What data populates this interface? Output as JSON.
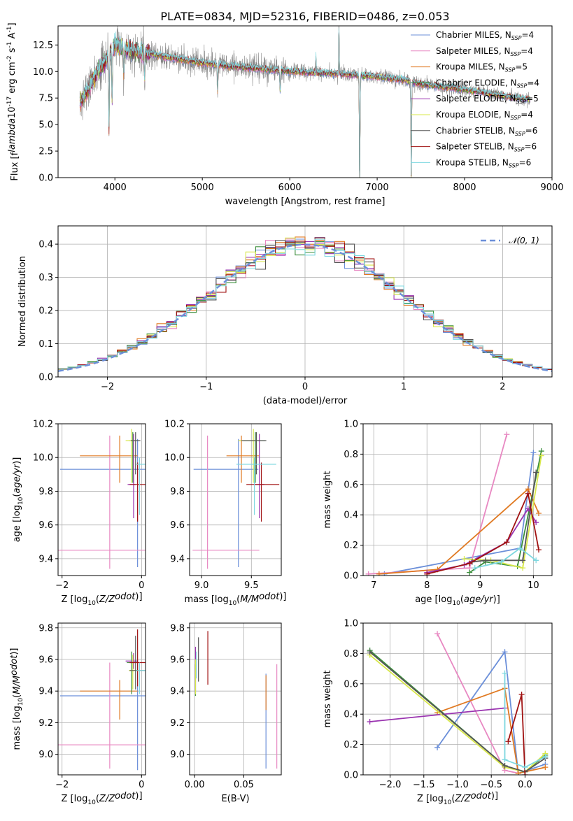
{
  "figure_title": "PLATE=0834, MJD=52316, FIBERID=0486, z=0.053",
  "colors": {
    "chabrier_miles": "#6b8fd9",
    "salpeter_miles": "#e888c2",
    "kroupa_miles": "#e07a23",
    "chabrier_elodie": "#3d8f3d",
    "salpeter_elodie": "#9a34b0",
    "kroupa_elodie": "#d8e84a",
    "chabrier_stelib": "#555555",
    "salpeter_stelib": "#a01212",
    "kroupa_stelib": "#7ed8e0",
    "data_gray": "#888888",
    "gaussian": "#6b8fd9"
  },
  "chart_data": [
    {
      "id": "spectrum",
      "type": "line",
      "title": "PLATE=0834, MJD=52316, FIBERID=0486, z=0.053",
      "xlabel": "wavelength [Angstrom, rest frame]",
      "ylabel": "Flux [f$_\\lambda$10$^{-17}$ erg cm$^{-2}$ s$^{-1}$ A$^{-1}$]",
      "xlim": [
        3350,
        9000
      ],
      "ylim": [
        0,
        14.3
      ],
      "xticks": [
        4000,
        5000,
        6000,
        7000,
        8000,
        9000
      ],
      "yticks": [
        0.0,
        2.5,
        5.0,
        7.5,
        10.0,
        12.5
      ],
      "legend_position": "top-right",
      "legend": [
        {
          "label": "Chabrier MILES, N",
          "sub": "SSP",
          "val": "=4",
          "color_key": "chabrier_miles"
        },
        {
          "label": "Salpeter MILES, N",
          "sub": "SSP",
          "val": "=4",
          "color_key": "salpeter_miles"
        },
        {
          "label": "Kroupa MILES, N",
          "sub": "SSP",
          "val": "=5",
          "color_key": "kroupa_miles"
        },
        {
          "label": "Chabrier ELODIE, N",
          "sub": "SSP",
          "val": "=4",
          "color_key": "chabrier_elodie"
        },
        {
          "label": "Salpeter ELODIE, N",
          "sub": "SSP",
          "val": "=5",
          "color_key": "salpeter_elodie"
        },
        {
          "label": "Kroupa ELODIE, N",
          "sub": "SSP",
          "val": "=4",
          "color_key": "kroupa_elodie"
        },
        {
          "label": "Chabrier STELIB, N",
          "sub": "SSP",
          "val": "=6",
          "color_key": "chabrier_stelib"
        },
        {
          "label": "Salpeter STELIB, N",
          "sub": "SSP",
          "val": "=6",
          "color_key": "salpeter_stelib"
        },
        {
          "label": "Kroupa STELIB, N",
          "sub": "SSP",
          "val": "=6",
          "color_key": "kroupa_stelib"
        }
      ],
      "continuum": {
        "x": [
          3600,
          3700,
          3800,
          3900,
          3950,
          4000,
          4100,
          4200,
          4300,
          4400,
          4500,
          4700,
          5000,
          5300,
          5600,
          6000,
          6500,
          7000,
          7300,
          7500,
          7800,
          8000,
          8300,
          8500,
          8750
        ],
        "y": [
          7.0,
          8.5,
          10.0,
          11.0,
          12.0,
          12.5,
          12.2,
          12.0,
          11.8,
          11.7,
          11.5,
          11.2,
          10.8,
          10.5,
          10.3,
          10.0,
          9.8,
          9.5,
          9.2,
          8.8,
          8.5,
          8.3,
          7.9,
          7.6,
          7.4
        ]
      },
      "features": {
        "dips": [
          {
            "x": 3933,
            "depth": 7.0
          },
          {
            "x": 3968,
            "depth": 5.0
          },
          {
            "x": 4102,
            "depth": 2.5
          },
          {
            "x": 4340,
            "depth": 2.5
          },
          {
            "x": 5175,
            "depth": 2.5
          },
          {
            "x": 5890,
            "depth": 2.0
          },
          {
            "x": 6800,
            "depth": 10.0
          },
          {
            "x": 7390,
            "depth": 9.0
          }
        ],
        "peaks": [
          {
            "x": 6563,
            "height": 4.5
          },
          {
            "x": 6300,
            "height": 1.5
          }
        ]
      }
    },
    {
      "id": "residual-hist",
      "type": "histogram",
      "xlabel": "(data-model)/error",
      "ylabel": "Normed distribution",
      "xlim": [
        -2.5,
        2.5
      ],
      "ylim": [
        0,
        0.455
      ],
      "xticks": [
        -2,
        -1,
        0,
        1,
        2
      ],
      "yticks": [
        0.0,
        0.1,
        0.2,
        0.3,
        0.4
      ],
      "legend_position": "top-right",
      "gaussian_label": "𝒩(0, 1)",
      "bin_width": 0.1
    },
    {
      "id": "age-vs-z",
      "type": "errorbar",
      "xlabel": "Z [log$_{10}$($Z/Z_\\odot$)]",
      "ylabel": "age  [log$_{10}$($age/yr$)]",
      "xlim": [
        -2.1,
        0.1
      ],
      "ylim": [
        9.3,
        10.2
      ],
      "xticks": [
        -2,
        0
      ],
      "yticks": [
        9.4,
        9.6,
        9.8,
        10.0,
        10.2
      ],
      "points": [
        {
          "x": -0.1,
          "xerr": [
            1.95,
            0.35
          ],
          "y": 9.93,
          "yerr": [
            0.58,
            0.18
          ],
          "color_key": "chabrier_miles"
        },
        {
          "x": -0.8,
          "xerr": [
            1.3,
            0.9
          ],
          "y": 9.45,
          "yerr": [
            0.11,
            0.68
          ],
          "color_key": "salpeter_miles"
        },
        {
          "x": -0.55,
          "xerr": [
            1.0,
            0.45
          ],
          "y": 10.01,
          "yerr": [
            0.16,
            0.12
          ],
          "color_key": "kroupa_miles"
        },
        {
          "x": -0.22,
          "xerr": [
            0.1,
            0.15
          ],
          "y": 10.1,
          "yerr": [
            0.25,
            0.05
          ],
          "color_key": "chabrier_elodie"
        },
        {
          "x": -0.2,
          "xerr": [
            0.15,
            0.05
          ],
          "y": 9.84,
          "yerr": [
            0.2,
            0.3
          ],
          "color_key": "salpeter_elodie"
        },
        {
          "x": -0.25,
          "xerr": [
            0.15,
            0.07
          ],
          "y": 10.1,
          "yerr": [
            0.25,
            0.07
          ],
          "color_key": "kroupa_elodie"
        },
        {
          "x": -0.15,
          "xerr": [
            0.12,
            0.12
          ],
          "y": 10.1,
          "yerr": [
            0.2,
            0.05
          ],
          "color_key": "chabrier_stelib"
        },
        {
          "x": -0.1,
          "xerr": [
            0.2,
            0.25
          ],
          "y": 9.84,
          "yerr": [
            0.22,
            0.13
          ],
          "color_key": "salpeter_stelib"
        },
        {
          "x": -0.05,
          "xerr": [
            0.08,
            0.22
          ],
          "y": 9.96,
          "yerr": [
            0.3,
            0.04
          ],
          "color_key": "kroupa_stelib"
        }
      ]
    },
    {
      "id": "age-vs-mass",
      "type": "errorbar",
      "xlabel": "mass [log$_{10}$($M/M_\\odot$)]",
      "ylabel": "",
      "xlim": [
        8.88,
        9.8
      ],
      "ylim": [
        9.3,
        10.2
      ],
      "xticks": [
        9.0,
        9.5
      ],
      "yticks": [
        9.4,
        9.6,
        9.8,
        10.0,
        10.2
      ],
      "points": [
        {
          "x": 9.37,
          "xerr": [
            0.45,
            0.2
          ],
          "y": 9.93,
          "yerr": [
            0.58,
            0.18
          ],
          "color_key": "chabrier_miles"
        },
        {
          "x": 9.06,
          "xerr": [
            0.15,
            0.52
          ],
          "y": 9.45,
          "yerr": [
            0.11,
            0.68
          ],
          "color_key": "salpeter_miles"
        },
        {
          "x": 9.4,
          "xerr": [
            0.15,
            0.18
          ],
          "y": 10.01,
          "yerr": [
            0.16,
            0.12
          ],
          "color_key": "kroupa_miles"
        },
        {
          "x": 9.54,
          "xerr": [
            0.12,
            0.1
          ],
          "y": 10.1,
          "yerr": [
            0.25,
            0.05
          ],
          "color_key": "chabrier_elodie"
        },
        {
          "x": 9.58,
          "xerr": [
            0.05,
            0.05
          ],
          "y": 9.84,
          "yerr": [
            0.2,
            0.3
          ],
          "color_key": "salpeter_elodie"
        },
        {
          "x": 9.52,
          "xerr": [
            0.15,
            0.05
          ],
          "y": 10.1,
          "yerr": [
            0.25,
            0.07
          ],
          "color_key": "kroupa_elodie"
        },
        {
          "x": 9.55,
          "xerr": [
            0.15,
            0.1
          ],
          "y": 10.1,
          "yerr": [
            0.2,
            0.05
          ],
          "color_key": "chabrier_stelib"
        },
        {
          "x": 9.6,
          "xerr": [
            0.15,
            0.18
          ],
          "y": 9.84,
          "yerr": [
            0.22,
            0.13
          ],
          "color_key": "salpeter_stelib"
        },
        {
          "x": 9.53,
          "xerr": [
            0.18,
            0.22
          ],
          "y": 9.96,
          "yerr": [
            0.3,
            0.04
          ],
          "color_key": "kroupa_stelib"
        }
      ]
    },
    {
      "id": "weight-vs-age",
      "type": "line",
      "xlabel": "age  [log$_{10}$($age/yr$)]",
      "ylabel": "mass weight",
      "xlim": [
        6.8,
        10.35
      ],
      "ylim": [
        0,
        1.0
      ],
      "xticks": [
        7,
        8,
        9,
        10
      ],
      "yticks": [
        0.0,
        0.2,
        0.4,
        0.6,
        0.8,
        1.0
      ],
      "series": [
        {
          "color_key": "chabrier_miles",
          "x": [
            7.2,
            9.75,
            10.0
          ],
          "y": [
            0.01,
            0.18,
            0.81
          ]
        },
        {
          "color_key": "salpeter_miles",
          "x": [
            6.9,
            8.8,
            9.5
          ],
          "y": [
            0.01,
            0.05,
            0.93
          ]
        },
        {
          "color_key": "kroupa_miles",
          "x": [
            7.1,
            8.2,
            9.9,
            10.1
          ],
          "y": [
            0.01,
            0.04,
            0.57,
            0.41
          ]
        },
        {
          "color_key": "chabrier_elodie",
          "x": [
            8.8,
            9.1,
            9.7,
            10.15
          ],
          "y": [
            0.02,
            0.09,
            0.06,
            0.82
          ]
        },
        {
          "color_key": "salpeter_elodie",
          "x": [
            8.0,
            8.7,
            9.5,
            9.9,
            10.05
          ],
          "y": [
            0.02,
            0.07,
            0.22,
            0.44,
            0.35
          ]
        },
        {
          "color_key": "kroupa_elodie",
          "x": [
            8.7,
            9.2,
            9.8,
            10.15
          ],
          "y": [
            0.11,
            0.1,
            0.05,
            0.79
          ]
        },
        {
          "color_key": "chabrier_stelib",
          "x": [
            8.85,
            9.1,
            9.8,
            10.05
          ],
          "y": [
            0.09,
            0.1,
            0.1,
            0.68
          ]
        },
        {
          "color_key": "salpeter_stelib",
          "x": [
            8.0,
            8.8,
            9.5,
            9.9,
            10.1
          ],
          "y": [
            0.01,
            0.08,
            0.22,
            0.54,
            0.17
          ]
        },
        {
          "color_key": "kroupa_stelib",
          "x": [
            8.9,
            9.4,
            9.75,
            10.05
          ],
          "y": [
            0.05,
            0.09,
            0.18,
            0.1
          ]
        }
      ]
    },
    {
      "id": "mass-vs-z",
      "type": "errorbar",
      "xlabel": "Z [log$_{10}$($Z/Z_\\odot$)]",
      "ylabel": "mass [log$_{10}$($M/M_\\odot$)]",
      "xlim": [
        -2.1,
        0.1
      ],
      "ylim": [
        8.87,
        9.83
      ],
      "xticks": [
        -2,
        0
      ],
      "yticks": [
        9.0,
        9.2,
        9.4,
        9.6,
        9.8
      ],
      "points": [
        {
          "x": -0.1,
          "xerr": [
            1.95,
            0.35
          ],
          "y": 9.37,
          "yerr": [
            0.47,
            0.23
          ],
          "color_key": "chabrier_miles"
        },
        {
          "x": -0.8,
          "xerr": [
            1.3,
            0.9
          ],
          "y": 9.06,
          "yerr": [
            0.15,
            0.52
          ],
          "color_key": "salpeter_miles"
        },
        {
          "x": -0.55,
          "xerr": [
            1.0,
            0.45
          ],
          "y": 9.4,
          "yerr": [
            0.18,
            0.07
          ],
          "color_key": "kroupa_miles"
        },
        {
          "x": -0.25,
          "xerr": [
            0.12,
            0.1
          ],
          "y": 9.58,
          "yerr": [
            0.2,
            0.07
          ],
          "color_key": "chabrier_elodie"
        },
        {
          "x": -0.2,
          "xerr": [
            0.2,
            0.1
          ],
          "y": 9.59,
          "yerr": [
            0.05,
            0.05
          ],
          "color_key": "salpeter_elodie"
        },
        {
          "x": -0.22,
          "xerr": [
            0.1,
            0.15
          ],
          "y": 9.53,
          "yerr": [
            0.12,
            0.1
          ],
          "color_key": "kroupa_elodie"
        },
        {
          "x": -0.15,
          "xerr": [
            0.15,
            0.25
          ],
          "y": 9.53,
          "yerr": [
            0.12,
            0.22
          ],
          "color_key": "chabrier_stelib"
        },
        {
          "x": -0.1,
          "xerr": [
            0.2,
            0.25
          ],
          "y": 9.58,
          "yerr": [
            0.15,
            0.21
          ],
          "color_key": "salpeter_stelib"
        },
        {
          "x": -0.05,
          "xerr": [
            0.08,
            0.22
          ],
          "y": 9.53,
          "yerr": [
            0.15,
            0.05
          ],
          "color_key": "kroupa_stelib"
        }
      ]
    },
    {
      "id": "mass-vs-ebv",
      "type": "errorbar",
      "xlabel": "E(B-V)",
      "ylabel": "",
      "xlim": [
        -0.005,
        0.088
      ],
      "ylim": [
        8.87,
        9.83
      ],
      "xticks": [
        0.0,
        0.05
      ],
      "xticklabels": [
        "0.00",
        "0.05"
      ],
      "yticks": [
        9.0,
        9.2,
        9.4,
        9.6,
        9.8
      ],
      "points": [
        {
          "x": 0.0725,
          "y": 9.21,
          "yerr": [
            0.3,
            0.3
          ],
          "color_key": "chabrier_miles"
        },
        {
          "x": 0.0835,
          "y": 9.23,
          "yerr": [
            0.32,
            0.34
          ],
          "color_key": "salpeter_miles"
        },
        {
          "x": 0.0725,
          "y": 9.4,
          "yerr": [
            0.12,
            0.1
          ],
          "color_key": "kroupa_miles"
        },
        {
          "x": 0.001,
          "y": 9.45,
          "yerr": [
            0.08,
            0.12
          ],
          "color_key": "chabrier_elodie"
        },
        {
          "x": 0.001,
          "y": 9.48,
          "yerr": [
            0.08,
            0.2
          ],
          "color_key": "salpeter_elodie"
        },
        {
          "x": 0.001,
          "y": 9.45,
          "yerr": [
            0.07,
            0.15
          ],
          "color_key": "kroupa_elodie"
        },
        {
          "x": 0.004,
          "y": 9.58,
          "yerr": [
            0.12,
            0.16
          ],
          "color_key": "chabrier_stelib"
        },
        {
          "x": 0.0135,
          "y": 9.61,
          "yerr": [
            0.17,
            0.17
          ],
          "color_key": "salpeter_stelib"
        },
        {
          "x": 0.002,
          "y": 9.58,
          "yerr": [
            0.1,
            0.07
          ],
          "color_key": "kroupa_stelib"
        }
      ]
    },
    {
      "id": "weight-vs-z",
      "type": "line",
      "xlabel": "Z [log$_{10}$($Z/Z_\\odot$)]",
      "ylabel": "mass weight",
      "xlim": [
        -2.4,
        0.4
      ],
      "ylim": [
        0,
        1.0
      ],
      "xticks": [
        -2.0,
        -1.5,
        -1.0,
        -0.5,
        0.0
      ],
      "xticklabels": [
        "−2.0",
        "−1.5",
        "−1.0",
        "−0.5",
        "0.0"
      ],
      "yticks": [
        0.0,
        0.2,
        0.4,
        0.6,
        0.8,
        1.0
      ],
      "series": [
        {
          "color_key": "chabrier_miles",
          "x": [
            -1.3,
            -0.3,
            -0.1,
            0.3
          ],
          "y": [
            0.18,
            0.81,
            0.01,
            0.07
          ]
        },
        {
          "color_key": "salpeter_miles",
          "x": [
            -1.3,
            -0.3,
            -0.1
          ],
          "y": [
            0.93,
            0.03,
            0.01
          ]
        },
        {
          "color_key": "kroupa_miles",
          "x": [
            -1.3,
            -0.3,
            -0.1,
            0.3
          ],
          "y": [
            0.41,
            0.57,
            0.01,
            0.05
          ]
        },
        {
          "color_key": "chabrier_elodie",
          "x": [
            -2.3,
            -0.3,
            0.0,
            0.3
          ],
          "y": [
            0.82,
            0.06,
            0.02,
            0.13
          ]
        },
        {
          "color_key": "salpeter_elodie",
          "x": [
            -2.3,
            -0.3
          ],
          "y": [
            0.35,
            0.44
          ]
        },
        {
          "color_key": "kroupa_elodie",
          "x": [
            -2.3,
            -0.3,
            0.0,
            0.3
          ],
          "y": [
            0.79,
            0.05,
            0.02,
            0.14
          ]
        },
        {
          "color_key": "chabrier_stelib",
          "x": [
            -2.3,
            -0.3,
            0.0,
            0.3
          ],
          "y": [
            0.81,
            0.06,
            0.02,
            0.11
          ]
        },
        {
          "color_key": "salpeter_stelib",
          "x": [
            -0.25,
            -0.05,
            0.0
          ],
          "y": [
            0.22,
            0.53,
            0.0
          ]
        },
        {
          "color_key": "kroupa_stelib",
          "x": [
            -0.3,
            -0.3,
            0.0,
            0.3
          ],
          "y": [
            0.67,
            0.1,
            0.05,
            0.12
          ]
        }
      ]
    }
  ]
}
